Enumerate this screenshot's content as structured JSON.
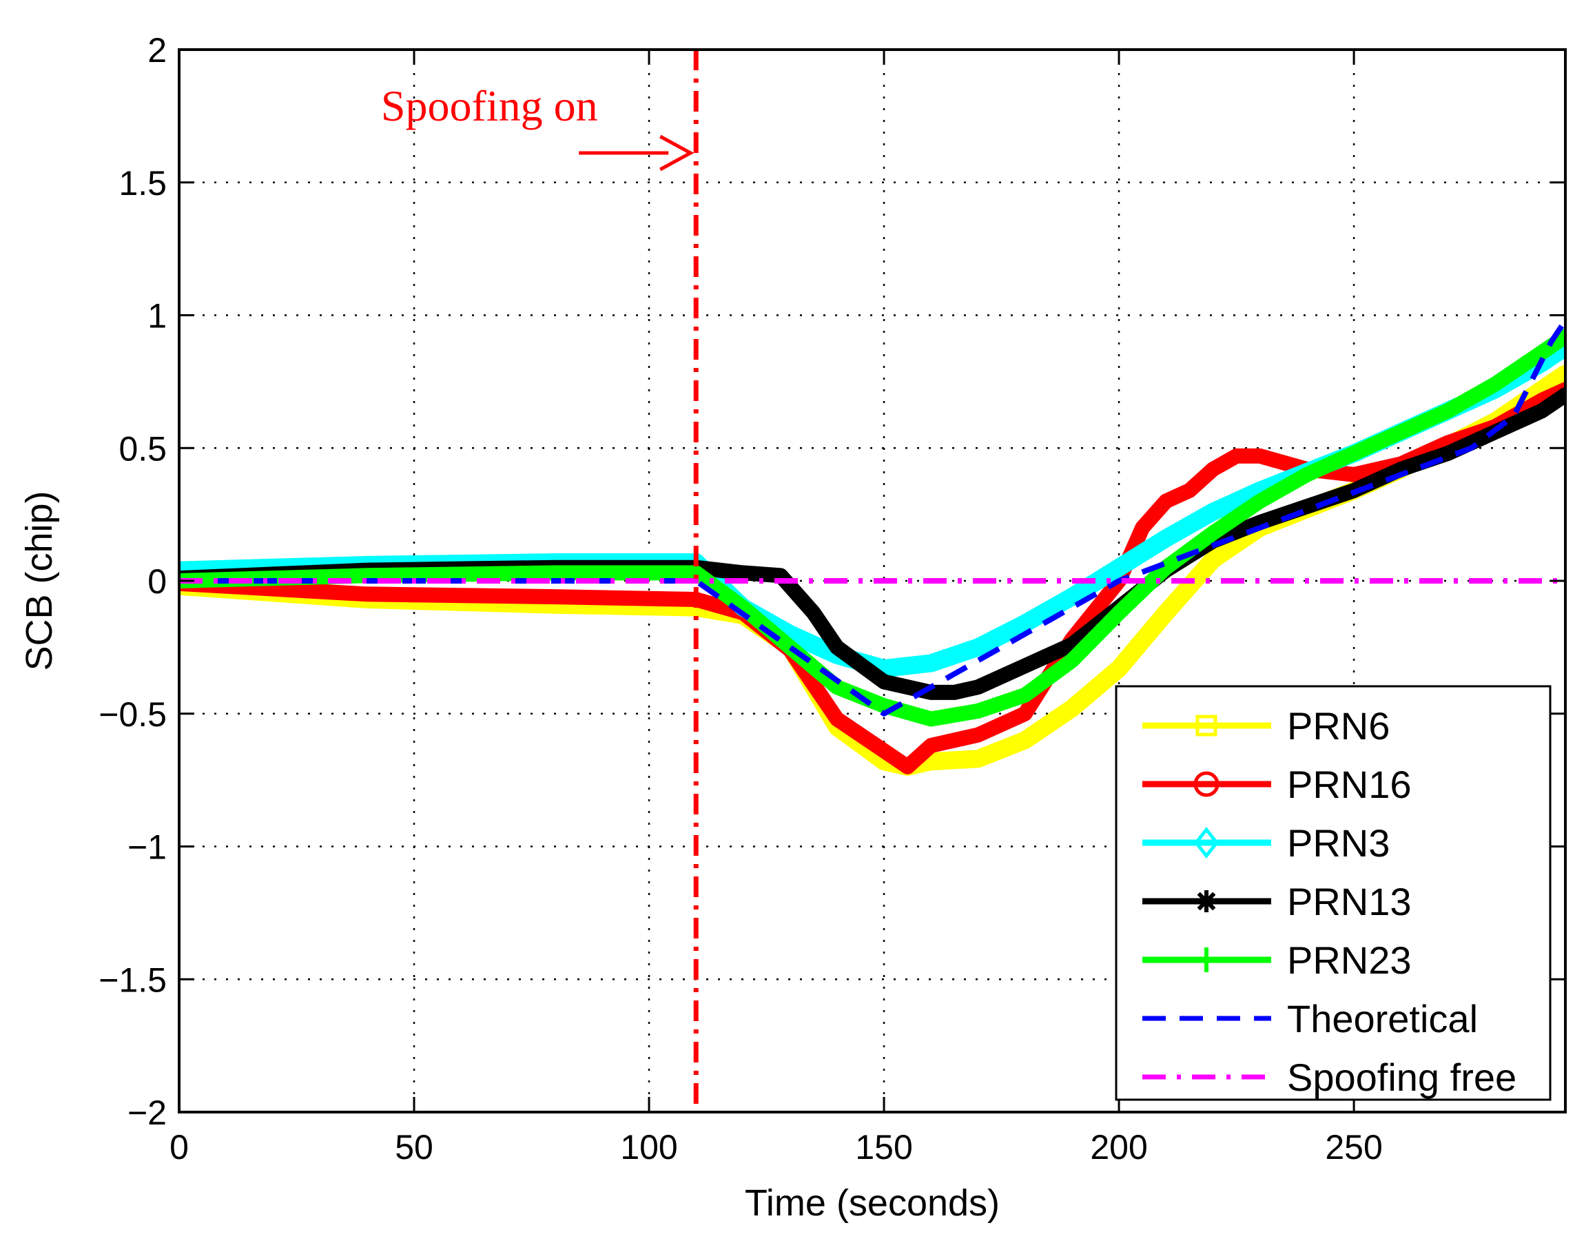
{
  "chart_data": {
    "type": "line",
    "title": "",
    "xlabel": "Time (seconds)",
    "ylabel": "SCB (chip)",
    "xlim": [
      0,
      295
    ],
    "ylim": [
      -2,
      2
    ],
    "grid": true,
    "legend_position": "bottom-right",
    "x_ticks": [
      0,
      50,
      100,
      150,
      200,
      250
    ],
    "x_tick_labels": [
      "0",
      "50",
      "100",
      "150",
      "200",
      "250"
    ],
    "y_ticks": [
      2,
      1.5,
      1,
      0.5,
      0,
      -0.5,
      -1,
      -1.5,
      -2
    ],
    "y_tick_labels": [
      "2",
      "1.5",
      "1",
      "0.5",
      "0",
      "−0.5",
      "−1",
      "−1.5",
      "−2"
    ],
    "annotation": {
      "text": "Spoofing on",
      "x": 110,
      "color": "#ff0000"
    },
    "series": [
      {
        "name": "PRN6",
        "color": "#ffff00",
        "marker": "square",
        "dash": "solid",
        "width": 26,
        "x": [
          0,
          40,
          80,
          110,
          120,
          130,
          140,
          150,
          155,
          160,
          170,
          180,
          190,
          200,
          210,
          220,
          230,
          240,
          250,
          260,
          270,
          280,
          290,
          295
        ],
        "y": [
          -0.02,
          -0.07,
          -0.09,
          -0.1,
          -0.13,
          -0.25,
          -0.55,
          -0.68,
          -0.7,
          -0.68,
          -0.67,
          -0.6,
          -0.48,
          -0.33,
          -0.12,
          0.08,
          0.2,
          0.27,
          0.34,
          0.42,
          0.51,
          0.6,
          0.72,
          0.78
        ]
      },
      {
        "name": "PRN16",
        "color": "#ff0000",
        "marker": "circle",
        "dash": "solid",
        "width": 22,
        "x": [
          0,
          40,
          80,
          110,
          120,
          130,
          140,
          150,
          155,
          160,
          170,
          180,
          190,
          200,
          205,
          210,
          215,
          220,
          225,
          230,
          240,
          250,
          260,
          270,
          280,
          290,
          295
        ],
        "y": [
          -0.01,
          -0.05,
          -0.06,
          -0.07,
          -0.12,
          -0.26,
          -0.52,
          -0.64,
          -0.7,
          -0.62,
          -0.58,
          -0.5,
          -0.22,
          0.0,
          0.2,
          0.3,
          0.34,
          0.42,
          0.47,
          0.47,
          0.42,
          0.4,
          0.44,
          0.52,
          0.58,
          0.68,
          0.72
        ]
      },
      {
        "name": "PRN3",
        "color": "#00ffff",
        "marker": "diamond",
        "dash": "solid",
        "width": 26,
        "x": [
          0,
          40,
          80,
          110,
          120,
          130,
          140,
          150,
          160,
          170,
          180,
          190,
          200,
          210,
          220,
          230,
          240,
          250,
          260,
          270,
          280,
          290,
          295
        ],
        "y": [
          0.04,
          0.06,
          0.07,
          0.07,
          -0.1,
          -0.2,
          -0.28,
          -0.33,
          -0.31,
          -0.25,
          -0.16,
          -0.06,
          0.05,
          0.16,
          0.26,
          0.34,
          0.41,
          0.48,
          0.56,
          0.64,
          0.72,
          0.82,
          0.88
        ]
      },
      {
        "name": "PRN13",
        "color": "#000000",
        "marker": "asterisk",
        "dash": "solid",
        "width": 22,
        "x": [
          0,
          40,
          80,
          110,
          120,
          128,
          135,
          140,
          150,
          160,
          165,
          170,
          180,
          190,
          200,
          210,
          220,
          230,
          240,
          250,
          260,
          270,
          280,
          290,
          295
        ],
        "y": [
          0.01,
          0.04,
          0.05,
          0.05,
          0.03,
          0.02,
          -0.12,
          -0.25,
          -0.38,
          -0.42,
          -0.42,
          -0.4,
          -0.32,
          -0.24,
          -0.1,
          0.04,
          0.15,
          0.22,
          0.28,
          0.34,
          0.42,
          0.48,
          0.56,
          0.64,
          0.7
        ]
      },
      {
        "name": "PRN23",
        "color": "#00ff00",
        "marker": "plus",
        "dash": "solid",
        "width": 22,
        "x": [
          0,
          40,
          80,
          110,
          120,
          130,
          140,
          150,
          160,
          170,
          180,
          190,
          200,
          210,
          220,
          230,
          240,
          250,
          260,
          270,
          280,
          290,
          295
        ],
        "y": [
          0.0,
          0.02,
          0.03,
          0.03,
          -0.1,
          -0.25,
          -0.4,
          -0.47,
          -0.52,
          -0.49,
          -0.43,
          -0.3,
          -0.12,
          0.05,
          0.18,
          0.3,
          0.4,
          0.48,
          0.56,
          0.64,
          0.74,
          0.86,
          0.92
        ]
      },
      {
        "name": "Theoretical",
        "color": "#0000ff",
        "marker": "none",
        "dash": "dashed",
        "width": 8,
        "x": [
          0,
          110,
          150,
          200,
          275,
          284,
          292,
          295
        ],
        "y": [
          0,
          0,
          -0.5,
          0,
          0.5,
          0.62,
          0.9,
          0.98
        ]
      },
      {
        "name": "Spoofing free",
        "color": "#ff00ff",
        "marker": "none",
        "dash": "dashdot",
        "width": 8,
        "x": [
          0,
          295
        ],
        "y": [
          0,
          0
        ]
      }
    ]
  }
}
